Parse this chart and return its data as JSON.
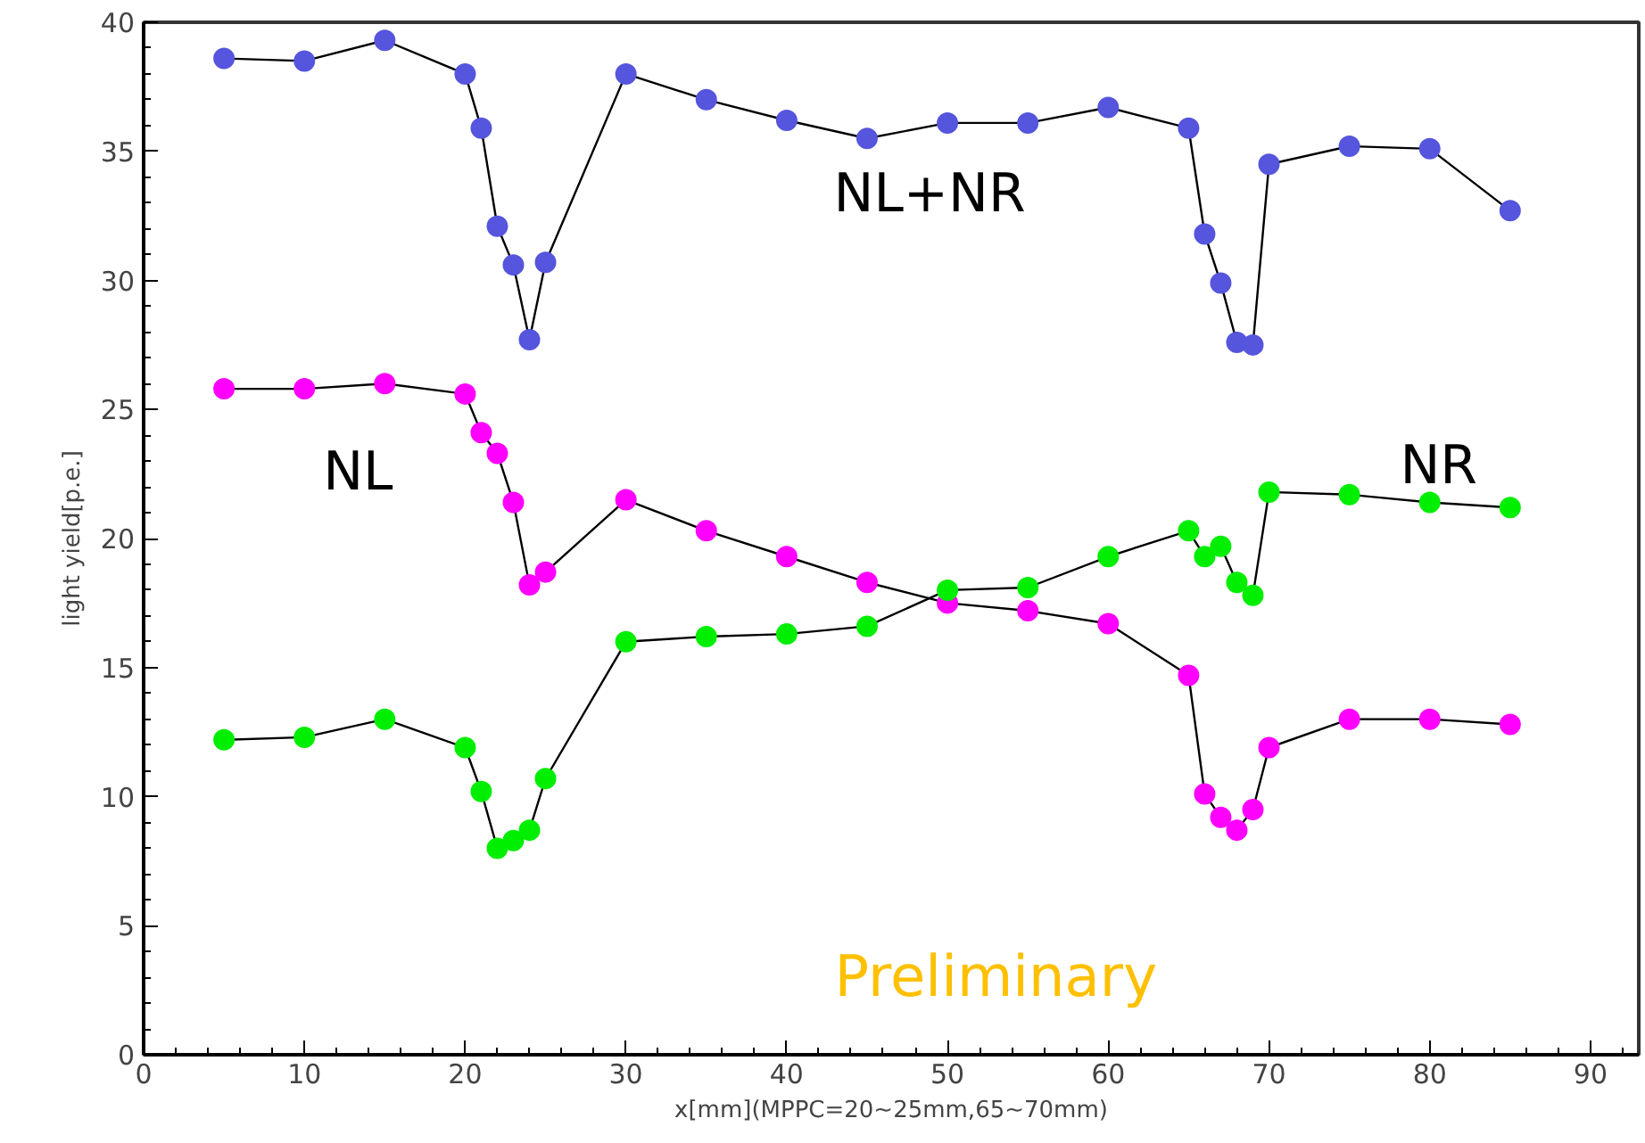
{
  "chart_data": {
    "type": "line",
    "xlabel": "x[mm](MPPC=20~25mm,65~70mm)",
    "ylabel": "light yield[p.e.]",
    "x": [
      5,
      10,
      15,
      20,
      21,
      22,
      23,
      24,
      25,
      30,
      35,
      40,
      45,
      50,
      55,
      60,
      65,
      66,
      67,
      68,
      69,
      70,
      75,
      80,
      85
    ],
    "series": [
      {
        "name": "NL+NR",
        "color": "#5555dd",
        "values": [
          38.6,
          38.5,
          39.3,
          38.0,
          35.9,
          32.1,
          30.6,
          27.7,
          30.7,
          38.0,
          37.0,
          36.2,
          35.5,
          36.1,
          36.1,
          36.7,
          35.9,
          31.8,
          29.9,
          27.6,
          27.5,
          34.5,
          35.2,
          35.1,
          32.7
        ]
      },
      {
        "name": "NL",
        "color": "#ff00ff",
        "values": [
          25.8,
          25.8,
          26.0,
          25.6,
          24.1,
          23.3,
          21.4,
          18.2,
          18.7,
          21.5,
          20.3,
          19.3,
          18.3,
          17.5,
          17.2,
          16.7,
          14.7,
          10.1,
          9.2,
          8.7,
          9.5,
          11.9,
          13.0,
          13.0,
          12.8
        ]
      },
      {
        "name": "NR",
        "color": "#00ee00",
        "values": [
          12.2,
          12.3,
          13.0,
          11.9,
          10.2,
          8.0,
          8.3,
          8.7,
          10.7,
          16.0,
          16.2,
          16.3,
          16.6,
          18.0,
          18.1,
          19.3,
          20.3,
          19.3,
          19.7,
          18.3,
          17.8,
          21.8,
          21.7,
          21.4,
          21.2
        ]
      }
    ],
    "xlim": [
      0,
      93
    ],
    "ylim": [
      0,
      40
    ],
    "xticks": [
      0,
      10,
      20,
      30,
      40,
      50,
      60,
      70,
      80,
      90
    ],
    "yticks": [
      0,
      5,
      10,
      15,
      20,
      25,
      30,
      35,
      40
    ],
    "grid": false,
    "marker": "circle",
    "line_style": "solid",
    "annotations": [
      "Preliminary"
    ]
  }
}
